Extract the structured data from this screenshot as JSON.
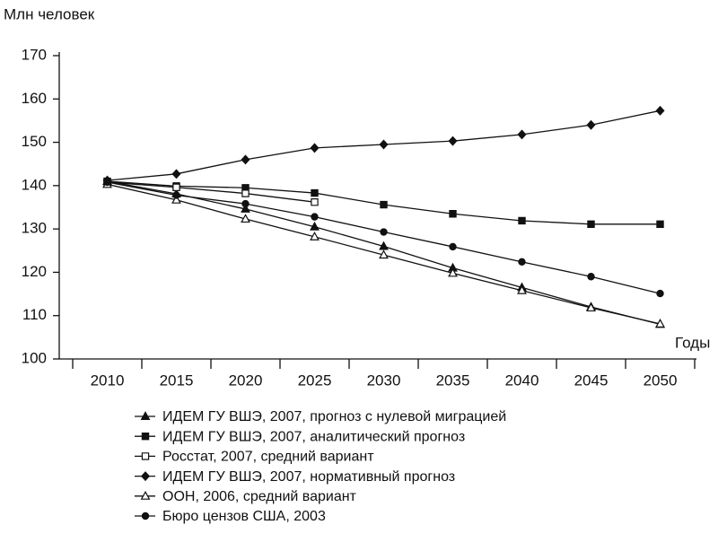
{
  "chart_data": {
    "type": "line",
    "y_label": "Млн человек",
    "x_label": "Годы",
    "categories": [
      "2010",
      "2015",
      "2020",
      "2025",
      "2030",
      "2035",
      "2040",
      "2045",
      "2050"
    ],
    "ylim": [
      100,
      170
    ],
    "yticks": [
      100,
      110,
      120,
      130,
      140,
      150,
      160,
      170
    ],
    "series": [
      {
        "name": "ИДЕМ ГУ ВШЭ, 2007, прогноз с нулевой миграцией",
        "color": "#111111",
        "marker": "triangle",
        "filled": true,
        "values": [
          141,
          138.1,
          134.6,
          130.5,
          126,
          121,
          116.5,
          112,
          108
        ]
      },
      {
        "name": "ИДЕМ ГУ ВШЭ, 2007, аналитический прогноз",
        "color": "#111111",
        "marker": "square",
        "filled": true,
        "values": [
          141,
          139.9,
          139.5,
          138.3,
          135.6,
          133.5,
          131.9,
          131.1,
          131.1
        ]
      },
      {
        "name": "Росстат, 2007, средний вариант",
        "color": "#111111",
        "marker": "square",
        "filled": false,
        "values": [
          140.8,
          139.6,
          138.2,
          136.2,
          null,
          null,
          null,
          null,
          null
        ]
      },
      {
        "name": "ИДЕМ ГУ ВШЭ, 2007, нормативный прогноз",
        "color": "#111111",
        "marker": "diamond",
        "filled": true,
        "values": [
          141.2,
          142.7,
          146,
          148.7,
          149.5,
          150.3,
          151.8,
          154,
          157.3
        ]
      },
      {
        "name": "ООН, 2006, средний вариант",
        "color": "#111111",
        "marker": "triangle",
        "filled": false,
        "values": [
          140.3,
          136.7,
          132.3,
          128.2,
          124,
          119.8,
          115.8,
          111.8,
          108.1
        ]
      },
      {
        "name": "Бюро цензов США, 2003",
        "color": "#111111",
        "marker": "circle",
        "filled": true,
        "values": [
          140.8,
          137.8,
          135.8,
          132.8,
          129.3,
          125.9,
          122.4,
          119,
          115.1
        ]
      }
    ]
  }
}
